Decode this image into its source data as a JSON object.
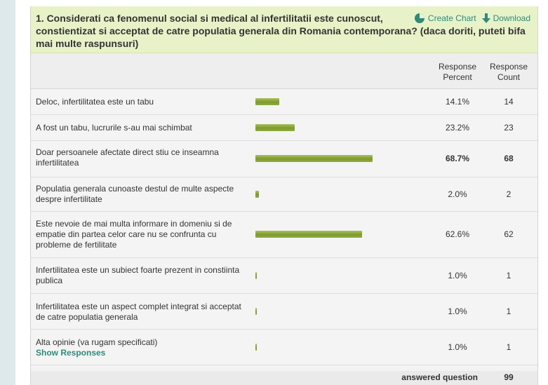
{
  "question": {
    "title": "1. Considerati ca fenomenul social si medical al infertilitatii este cunoscut, constientizat si acceptat de catre populatia generala din Romania contemporana? (daca doriti, puteti bifa mai multe raspunsuri)"
  },
  "actions": {
    "create_chart": "Create Chart",
    "download": "Download"
  },
  "table": {
    "headers": {
      "percent": "Response Percent",
      "count": "Response Count"
    },
    "rows": [
      {
        "label": "Deloc, infertilitatea este un tabu",
        "percent": "14.1%",
        "count": "14",
        "value": 14.1
      },
      {
        "label": "A fost un tabu, lucrurile s-au mai schimbat",
        "percent": "23.2%",
        "count": "23",
        "value": 23.2
      },
      {
        "label": "Doar persoanele afectate direct stiu ce inseamna infertilitatea",
        "percent": "68.7%",
        "count": "68",
        "value": 68.7
      },
      {
        "label": "Populatia generala cunoaste destul de multe aspecte despre infertilitate",
        "percent": "2.0%",
        "count": "2",
        "value": 2.0
      },
      {
        "label": "Este nevoie de mai multa informare in domeniu si de empatie din partea celor care nu se confrunta cu probleme de fertilitate",
        "percent": "62.6%",
        "count": "62",
        "value": 62.6
      },
      {
        "label": "Infertilitatea este un subiect foarte prezent in constiinta publica",
        "percent": "1.0%",
        "count": "1",
        "value": 1.0
      },
      {
        "label": "Infertilitatea este un aspect complet integrat si acceptat de catre populatia generala",
        "percent": "1.0%",
        "count": "1",
        "value": 1.0
      },
      {
        "label": "Alta opinie (va rugam specificati)",
        "percent": "1.0%",
        "count": "1",
        "value": 1.0,
        "link": "Show Responses"
      }
    ],
    "answered_label": "answered question",
    "answered_count": "99"
  },
  "colors": {
    "header_bg": "#e8f2c8",
    "bar": "#8aa63a",
    "link": "#2f8a7c"
  }
}
